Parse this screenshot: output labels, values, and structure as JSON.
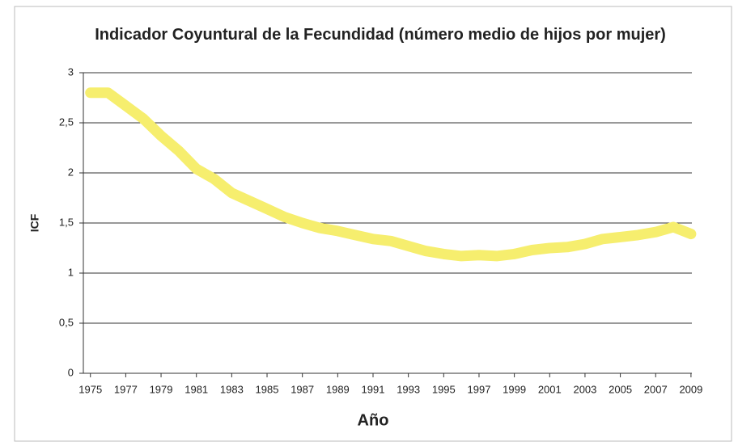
{
  "chart_data": {
    "type": "line",
    "title": "Indicador Coyuntural de la Fecundidad (número medio de hijos por mujer)",
    "x_label": "Año",
    "y_label": "ICF",
    "x": [
      1975,
      1976,
      1977,
      1978,
      1979,
      1980,
      1981,
      1982,
      1983,
      1984,
      1985,
      1986,
      1987,
      1988,
      1989,
      1990,
      1991,
      1992,
      1993,
      1994,
      1995,
      1996,
      1997,
      1998,
      1999,
      2000,
      2001,
      2002,
      2003,
      2004,
      2005,
      2006,
      2007,
      2008,
      2009
    ],
    "values": [
      2.8,
      2.8,
      2.67,
      2.54,
      2.37,
      2.22,
      2.04,
      1.94,
      1.8,
      1.72,
      1.64,
      1.56,
      1.5,
      1.45,
      1.42,
      1.38,
      1.34,
      1.32,
      1.27,
      1.22,
      1.19,
      1.17,
      1.18,
      1.17,
      1.19,
      1.23,
      1.25,
      1.26,
      1.29,
      1.34,
      1.36,
      1.38,
      1.41,
      1.46,
      1.39
    ],
    "color": "#f6ee6e",
    "xlim": [
      1974.6,
      2009.05
    ],
    "xticks": [
      1975,
      1977,
      1979,
      1981,
      1983,
      1985,
      1987,
      1989,
      1991,
      1993,
      1995,
      1997,
      1999,
      2001,
      2003,
      2005,
      2007,
      2009
    ],
    "ylim": [
      0,
      3
    ],
    "yticks": [
      0,
      {
        "value": 0.5,
        "label": "0,5"
      },
      1,
      {
        "value": 1.5,
        "label": "1,5"
      },
      2,
      {
        "value": 2.5,
        "label": "2,5"
      },
      3
    ],
    "grid": true
  }
}
